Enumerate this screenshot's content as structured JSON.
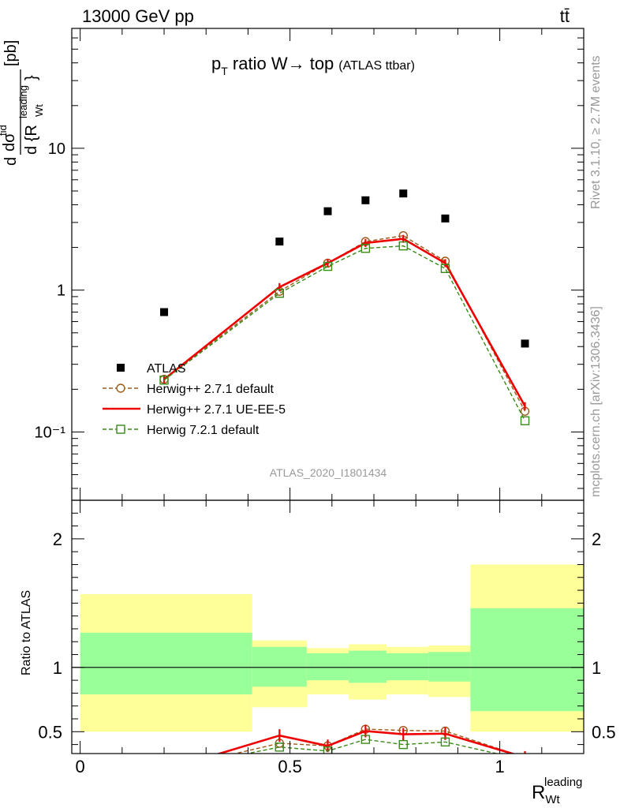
{
  "header": {
    "energy_label": "13000 GeV pp",
    "process_label": "tt̄"
  },
  "side_labels": {
    "rivet": "Rivet 3.1.10, ≥ 2.7M events",
    "mcplots": "mcplots.cern.ch [arXiv:1306.3436]"
  },
  "chart_data": [
    {
      "type": "line",
      "panel": "main",
      "title": "pT ratio W→ top (ATLAS ttbar)",
      "title_main": "p",
      "title_sub": "T",
      "title_rest": " ratio W→ top",
      "title_small": "(ATLAS ttbar)",
      "ylabel": "d σ / d {R_Wt^leading} [pb]",
      "yscale": "log",
      "ylim": [
        0.033,
        70
      ],
      "xlim": [
        -0.02,
        1.2
      ],
      "y_tick_labels": [
        "10⁻¹",
        "1",
        "10"
      ],
      "y_ticks": [
        0.1,
        1,
        10
      ],
      "watermark": "ATLAS_2020_I1801434",
      "legend_position": "middle-left",
      "series": [
        {
          "name": "ATLAS",
          "color": "#000000",
          "marker": "square-filled",
          "x": [
            0.2,
            0.475,
            0.59,
            0.68,
            0.77,
            0.87,
            1.06
          ],
          "y": [
            0.7,
            2.2,
            3.6,
            4.3,
            4.8,
            3.2,
            0.42
          ]
        },
        {
          "name": "Herwig++ 2.7.1 default",
          "color": "#9c5a1a",
          "marker": "circle-open",
          "dash": "dashed",
          "x": [
            0.2,
            0.475,
            0.59,
            0.68,
            0.77,
            0.87,
            1.06
          ],
          "y": [
            0.235,
            0.98,
            1.55,
            2.2,
            2.42,
            1.6,
            0.14
          ]
        },
        {
          "name": "Herwig++ 2.7.1 UE-EE-5",
          "color": "#ee0000",
          "marker": "none",
          "dash": "solid",
          "x": [
            0.2,
            0.475,
            0.59,
            0.68,
            0.77,
            0.87,
            1.06
          ],
          "y": [
            0.235,
            1.05,
            1.55,
            2.15,
            2.3,
            1.55,
            0.152
          ]
        },
        {
          "name": "Herwig 7.2.1 default",
          "color": "#3a8a1a",
          "marker": "square-open",
          "dash": "dashed",
          "x": [
            0.2,
            0.475,
            0.59,
            0.68,
            0.77,
            0.87,
            1.06
          ],
          "y": [
            0.232,
            0.95,
            1.47,
            1.97,
            2.05,
            1.42,
            0.12
          ]
        }
      ]
    },
    {
      "type": "line",
      "panel": "ratio",
      "ylabel": "Ratio to ATLAS",
      "xlabel": "R_Wt^leading",
      "xlabel_main": "R",
      "xlabel_sub": "Wt",
      "xlabel_sup": "leading",
      "ylim": [
        0.33,
        2.3
      ],
      "xlim": [
        -0.02,
        1.2
      ],
      "y_ticks": [
        0.5,
        1,
        2
      ],
      "y_tick_labels": [
        "0.5",
        "1",
        "2"
      ],
      "x_ticks": [
        0,
        0.5,
        1
      ],
      "x_tick_labels": [
        "0",
        "0.5",
        "1"
      ],
      "bands": [
        {
          "x0": 0.0,
          "x1": 0.41,
          "yellow": [
            0.5,
            1.57
          ],
          "green": [
            0.79,
            1.27
          ]
        },
        {
          "x0": 0.41,
          "x1": 0.54,
          "yellow": [
            0.69,
            1.21
          ],
          "green": [
            0.85,
            1.16
          ]
        },
        {
          "x0": 0.54,
          "x1": 0.64,
          "yellow": [
            0.79,
            1.15
          ],
          "green": [
            0.9,
            1.11
          ]
        },
        {
          "x0": 0.64,
          "x1": 0.73,
          "yellow": [
            0.75,
            1.18
          ],
          "green": [
            0.88,
            1.13
          ]
        },
        {
          "x0": 0.73,
          "x1": 0.83,
          "yellow": [
            0.79,
            1.16
          ],
          "green": [
            0.9,
            1.11
          ]
        },
        {
          "x0": 0.83,
          "x1": 0.93,
          "yellow": [
            0.77,
            1.17
          ],
          "green": [
            0.89,
            1.12
          ]
        },
        {
          "x0": 0.93,
          "x1": 1.2,
          "yellow": [
            0.5,
            1.8
          ],
          "green": [
            0.66,
            1.46
          ]
        }
      ],
      "series": [
        {
          "name": "Herwig++ 2.7.1 default",
          "color": "#9c5a1a",
          "marker": "circle-open",
          "dash": "dashed",
          "x": [
            0.2,
            0.475,
            0.59,
            0.68,
            0.77,
            0.87,
            1.06
          ],
          "y": [
            0.2,
            0.41,
            0.39,
            0.52,
            0.51,
            0.505,
            0.3
          ]
        },
        {
          "name": "Herwig++ 2.7.1 UE-EE-5",
          "color": "#ee0000",
          "marker": "none",
          "dash": "solid",
          "x": [
            0.2,
            0.475,
            0.59,
            0.68,
            0.77,
            0.87,
            1.06
          ],
          "y": [
            0.2,
            0.47,
            0.39,
            0.505,
            0.48,
            0.485,
            0.3
          ]
        },
        {
          "name": "Herwig 7.2.1 default",
          "color": "#3a8a1a",
          "marker": "square-open",
          "dash": "dashed",
          "x": [
            0.2,
            0.475,
            0.59,
            0.68,
            0.77,
            0.87,
            1.06
          ],
          "y": [
            0.2,
            0.38,
            0.35,
            0.44,
            0.4,
            0.42,
            0.28
          ]
        }
      ]
    }
  ]
}
